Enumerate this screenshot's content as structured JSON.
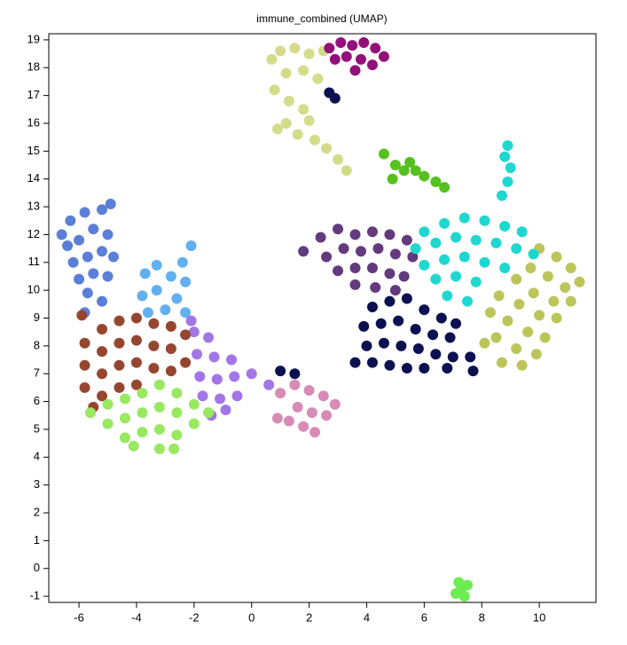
{
  "chart_data": {
    "type": "scatter",
    "title": "immune_combined (UMAP)",
    "xlim": [
      -7.05,
      11.97
    ],
    "ylim": [
      -1.22,
      19.22
    ],
    "xticks": [
      -6,
      -4,
      -2,
      0,
      2,
      4,
      6,
      8,
      10
    ],
    "yticks": [
      -1,
      0,
      1,
      2,
      3,
      4,
      5,
      6,
      7,
      8,
      9,
      10,
      11,
      12,
      13,
      14,
      15,
      16,
      17,
      18,
      19
    ],
    "series": [
      {
        "color": "#d4dc8a",
        "x": [
          0.7,
          1.0,
          1.5,
          2.0,
          2.5,
          1.2,
          1.8,
          2.3,
          0.8,
          1.3,
          1.8,
          1.2,
          1.6,
          2.2,
          2.6,
          3.0,
          2.0,
          0.9,
          3.3
        ],
        "values": [
          18.3,
          18.6,
          18.7,
          18.5,
          18.6,
          17.8,
          17.9,
          17.6,
          17.2,
          16.8,
          16.5,
          16.0,
          15.6,
          15.4,
          15.1,
          14.7,
          16.1,
          15.8,
          14.3
        ]
      },
      {
        "color": "#93107a",
        "x": [
          2.7,
          3.1,
          3.5,
          3.9,
          4.3,
          4.6,
          3.3,
          3.8,
          4.2,
          3.6,
          2.9
        ],
        "values": [
          18.7,
          18.9,
          18.8,
          18.9,
          18.7,
          18.4,
          18.4,
          18.3,
          18.1,
          17.9,
          18.3
        ]
      },
      {
        "color": "#55c01e",
        "x": [
          4.6,
          5.0,
          5.3,
          5.7,
          6.0,
          6.4,
          6.7,
          5.5,
          4.9
        ],
        "values": [
          14.9,
          14.5,
          14.3,
          14.3,
          14.1,
          13.9,
          13.7,
          14.6,
          14.0
        ]
      },
      {
        "color": "#5b7fd8",
        "x": [
          -6.6,
          -6.3,
          -5.8,
          -5.2,
          -4.9,
          -6.4,
          -6.0,
          -5.5,
          -5.0,
          -6.2,
          -5.7,
          -5.2,
          -4.8,
          -6.0,
          -5.5,
          -5.0,
          -5.7,
          -5.2,
          -5.8
        ],
        "values": [
          12.0,
          12.5,
          12.8,
          12.9,
          13.1,
          11.6,
          11.8,
          12.2,
          12.0,
          11.0,
          11.2,
          11.4,
          11.2,
          10.4,
          10.6,
          10.5,
          9.9,
          9.6,
          9.2
        ]
      },
      {
        "color": "#62b0f0",
        "x": [
          -2.1,
          -2.4,
          -3.3,
          -3.7,
          -2.8,
          -2.3,
          -3.3,
          -2.6,
          -3.8,
          -3.0,
          -2.3,
          -3.6
        ],
        "values": [
          11.6,
          11.0,
          10.9,
          10.6,
          10.5,
          10.3,
          10.0,
          9.7,
          9.8,
          9.3,
          9.2,
          9.2
        ]
      },
      {
        "color": "#a276e6",
        "x": [
          -2.0,
          -1.5,
          -1.9,
          -1.3,
          -0.7,
          -1.8,
          -1.2,
          -0.6,
          0.0,
          0.6,
          -1.7,
          -1.1,
          -0.5,
          -1.4,
          -0.9,
          -2.1
        ],
        "values": [
          8.5,
          8.3,
          7.7,
          7.6,
          7.5,
          6.9,
          6.8,
          6.9,
          7.0,
          6.6,
          6.2,
          6.1,
          6.2,
          5.5,
          5.7,
          8.9
        ]
      },
      {
        "color": "#964630",
        "x": [
          -5.8,
          -5.8,
          -5.8,
          -5.2,
          -5.2,
          -5.2,
          -5.2,
          -4.6,
          -4.6,
          -4.6,
          -4.6,
          -4.0,
          -4.0,
          -4.0,
          -4.0,
          -3.4,
          -3.4,
          -3.4,
          -2.8,
          -2.8,
          -2.8,
          -2.3,
          -2.3,
          -5.5,
          -5.9
        ],
        "values": [
          8.1,
          7.3,
          6.5,
          8.6,
          7.8,
          7.0,
          6.2,
          8.9,
          8.1,
          7.3,
          6.5,
          9.0,
          8.2,
          7.4,
          6.6,
          8.8,
          8.0,
          7.2,
          8.7,
          7.9,
          7.1,
          8.4,
          7.4,
          5.8,
          9.1
        ]
      },
      {
        "color": "#98e860",
        "x": [
          -5.6,
          -5.0,
          -5.0,
          -4.4,
          -4.4,
          -4.4,
          -3.8,
          -3.8,
          -3.8,
          -3.2,
          -3.2,
          -3.2,
          -3.2,
          -2.6,
          -2.6,
          -2.6,
          -2.0,
          -2.0,
          -1.5,
          -4.1,
          -2.7
        ],
        "values": [
          5.6,
          5.9,
          5.2,
          6.1,
          5.4,
          4.7,
          6.3,
          5.6,
          4.9,
          6.6,
          5.8,
          5.0,
          4.3,
          6.3,
          5.6,
          4.8,
          5.9,
          5.2,
          5.6,
          4.4,
          4.3
        ]
      },
      {
        "color": "#d88bb6",
        "x": [
          1.0,
          1.5,
          2.0,
          2.5,
          2.9,
          1.6,
          2.1,
          2.6,
          1.8,
          2.2,
          1.3,
          0.9
        ],
        "values": [
          6.3,
          6.6,
          6.4,
          6.2,
          5.9,
          5.8,
          5.6,
          5.5,
          5.1,
          4.9,
          5.3,
          5.4
        ]
      },
      {
        "color": "#643a7e",
        "x": [
          1.8,
          2.4,
          3.0,
          3.6,
          4.2,
          4.8,
          5.4,
          2.6,
          3.2,
          3.8,
          4.4,
          5.0,
          5.6,
          3.0,
          3.6,
          4.2,
          4.8,
          5.3,
          3.6,
          4.3,
          5.0
        ],
        "values": [
          11.4,
          11.9,
          12.2,
          12.0,
          12.1,
          12.0,
          11.8,
          11.2,
          11.5,
          11.4,
          11.5,
          11.3,
          11.2,
          10.7,
          10.8,
          10.8,
          10.6,
          10.5,
          10.2,
          10.1,
          10.0
        ]
      },
      {
        "color": "#bcc55a",
        "x": [
          10.0,
          10.6,
          11.1,
          11.4,
          9.7,
          10.3,
          10.9,
          9.2,
          9.8,
          10.5,
          11.1,
          8.6,
          9.3,
          10.0,
          10.6,
          8.3,
          8.9,
          9.6,
          10.2,
          8.5,
          9.2,
          9.9,
          8.7,
          9.4,
          8.1
        ],
        "values": [
          11.5,
          11.2,
          10.8,
          10.3,
          10.8,
          10.5,
          10.1,
          10.4,
          9.9,
          9.6,
          9.6,
          9.8,
          9.5,
          9.1,
          9.0,
          9.2,
          8.9,
          8.5,
          8.3,
          8.3,
          7.9,
          7.7,
          7.4,
          7.3,
          8.1
        ]
      },
      {
        "color": "#1ed8d0",
        "x": [
          6.0,
          6.7,
          7.4,
          8.1,
          8.8,
          9.4,
          5.7,
          6.4,
          7.1,
          7.8,
          8.5,
          9.2,
          9.8,
          6.0,
          6.7,
          7.4,
          8.1,
          8.8,
          6.4,
          7.1,
          7.8,
          6.8,
          7.5,
          8.9,
          8.8,
          9.0,
          8.9,
          8.7
        ],
        "values": [
          12.1,
          12.4,
          12.6,
          12.5,
          12.3,
          12.1,
          11.5,
          11.7,
          11.9,
          11.8,
          11.7,
          11.5,
          11.3,
          10.9,
          11.1,
          11.2,
          11.0,
          10.8,
          10.4,
          10.5,
          10.3,
          9.8,
          9.6,
          15.2,
          14.8,
          14.4,
          13.9,
          13.4
        ]
      },
      {
        "color": "#0a1050",
        "x": [
          4.2,
          4.8,
          5.4,
          6.0,
          6.6,
          7.1,
          3.9,
          4.5,
          5.1,
          5.7,
          6.3,
          6.9,
          4.0,
          4.6,
          5.2,
          5.8,
          6.4,
          7.0,
          7.6,
          3.6,
          4.2,
          4.8,
          5.4,
          6.0,
          6.8,
          7.7,
          1.0,
          1.5,
          2.7,
          2.9
        ],
        "values": [
          9.4,
          9.6,
          9.7,
          9.3,
          9.0,
          8.8,
          8.7,
          8.8,
          8.9,
          8.6,
          8.4,
          8.3,
          8.0,
          8.1,
          8.0,
          7.9,
          7.7,
          7.6,
          7.6,
          7.4,
          7.4,
          7.3,
          7.2,
          7.2,
          7.2,
          7.1,
          7.1,
          7.0,
          17.1,
          16.9
        ]
      },
      {
        "color": "#6ced52",
        "x": [
          7.1,
          7.3,
          7.5,
          7.2,
          7.4
        ],
        "values": [
          -0.9,
          -0.7,
          -0.6,
          -0.5,
          -1.0
        ]
      }
    ]
  }
}
